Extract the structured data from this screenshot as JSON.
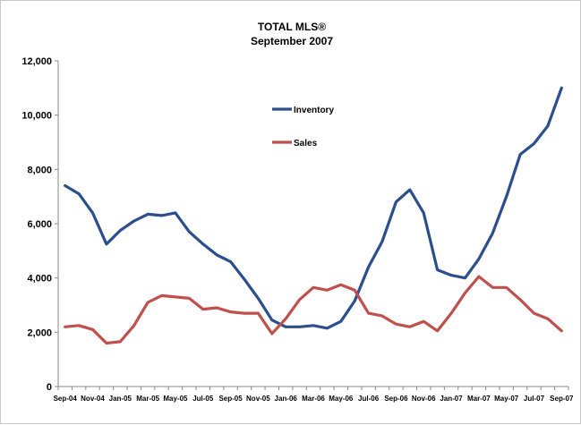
{
  "chart_data": {
    "type": "line",
    "title": "TOTAL MLS®",
    "subtitle": "September 2007",
    "xlabel": "",
    "ylabel": "",
    "ylim": [
      0,
      12000
    ],
    "yticks": [
      0,
      2000,
      4000,
      6000,
      8000,
      10000,
      12000
    ],
    "ytick_labels": [
      "0",
      "2,000",
      "4,000",
      "6,000",
      "8,000",
      "10,000",
      "12,000"
    ],
    "x": [
      "Sep-04",
      "Oct-04",
      "Nov-04",
      "Dec-04",
      "Jan-05",
      "Feb-05",
      "Mar-05",
      "Apr-05",
      "May-05",
      "Jun-05",
      "Jul-05",
      "Aug-05",
      "Sep-05",
      "Oct-05",
      "Nov-05",
      "Dec-05",
      "Jan-06",
      "Feb-06",
      "Mar-06",
      "Apr-06",
      "May-06",
      "Jun-06",
      "Jul-06",
      "Aug-06",
      "Sep-06",
      "Oct-06",
      "Nov-06",
      "Dec-06",
      "Jan-07",
      "Feb-07",
      "Mar-07",
      "Apr-07",
      "May-07",
      "Jun-07",
      "Jul-07",
      "Aug-07",
      "Sep-07"
    ],
    "xtick_labels": [
      "Sep-04",
      "Nov-04",
      "Jan-05",
      "Mar-05",
      "May-05",
      "Jul-05",
      "Sep-05",
      "Nov-05",
      "Jan-06",
      "Mar-06",
      "May-06",
      "Jul-06",
      "Sep-06",
      "Nov-06",
      "Jan-07",
      "Mar-07",
      "May-07",
      "Jul-07",
      "Sep-07"
    ],
    "grid": false,
    "legend_position": "inside-top-center",
    "series": [
      {
        "name": "Inventory",
        "color": "#2b4e8c",
        "values": [
          7400,
          7100,
          6400,
          5250,
          5750,
          6100,
          6350,
          6300,
          6400,
          5700,
          5250,
          4850,
          4600,
          3950,
          3250,
          2450,
          2200,
          2200,
          2250,
          2150,
          2400,
          3150,
          4400,
          5350,
          6800,
          7250,
          6400,
          4300,
          4100,
          4000,
          4700,
          5650,
          7000,
          8550,
          8950,
          9600,
          11000
        ]
      },
      {
        "name": "Sales",
        "color": "#c0504d",
        "values": [
          2200,
          2250,
          2100,
          1600,
          1650,
          2250,
          3100,
          3350,
          3300,
          3250,
          2850,
          2900,
          2750,
          2700,
          2700,
          1950,
          2500,
          3200,
          3650,
          3550,
          3750,
          3550,
          2700,
          2600,
          2300,
          2200,
          2400,
          2050,
          2700,
          3450,
          4050,
          3650,
          3650,
          3200,
          2700,
          2500,
          2050
        ]
      }
    ]
  }
}
